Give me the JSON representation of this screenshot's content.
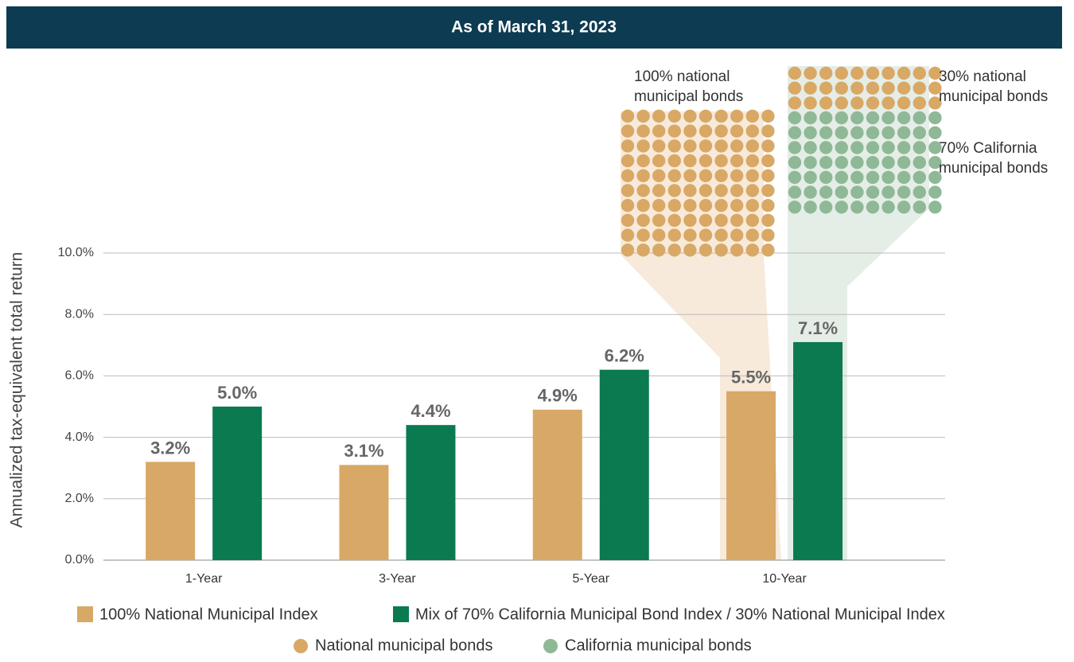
{
  "chart_data": {
    "type": "bar",
    "title": "As of March 31, 2023",
    "y_label": "Annualized tax-equivalent total return",
    "categories": [
      "1-Year",
      "3-Year",
      "5-Year",
      "10-Year"
    ],
    "series": [
      {
        "name": "100% National Municipal Index",
        "color": "#d8a866",
        "values": [
          3.2,
          3.1,
          4.9,
          5.5
        ],
        "value_labels": [
          "3.2%",
          "3.1%",
          "4.9%",
          "5.5%"
        ]
      },
      {
        "name": "Mix of 70% California Municipal Bond Index / 30% National Municipal Index",
        "color": "#0b7a50",
        "values": [
          5.0,
          4.4,
          6.2,
          7.1
        ],
        "value_labels": [
          "5.0%",
          "4.4%",
          "6.2%",
          "7.1%"
        ]
      }
    ],
    "ylim": [
      0,
      10
    ],
    "yticks": [
      {
        "value": 0,
        "label": "0.0%"
      },
      {
        "value": 2,
        "label": "2.0%"
      },
      {
        "value": 4,
        "label": "4.0%"
      },
      {
        "value": 6,
        "label": "6.0%"
      },
      {
        "value": 8,
        "label": "8.0%"
      },
      {
        "value": 10,
        "label": "10.0%"
      }
    ],
    "grid": true,
    "dot_legend": [
      {
        "name": "National municipal bonds",
        "color": "#d9a865"
      },
      {
        "name": "California municipal bonds",
        "color": "#8fb897"
      }
    ],
    "waffles": [
      {
        "segments": [
          {
            "value": 100,
            "color": "#d9a865",
            "label": [
              "100% national",
              "municipal bonds"
            ]
          }
        ]
      },
      {
        "segments": [
          {
            "value": 30,
            "color": "#d9a865",
            "label": [
              "30% national",
              "municipal bonds"
            ]
          },
          {
            "value": 70,
            "color": "#8fb897",
            "label": [
              "70% California",
              "municipal bonds"
            ]
          }
        ]
      }
    ]
  }
}
